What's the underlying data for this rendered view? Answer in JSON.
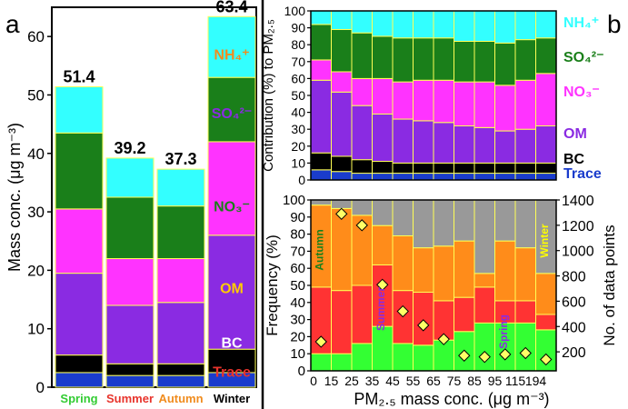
{
  "chart_data": [
    {
      "type": "bar",
      "panel_label": "a",
      "ylabel": "Mass conc. (μg m⁻³)",
      "ylim": [
        0,
        65
      ],
      "yticks": [
        "0",
        "10",
        "20",
        "30",
        "40",
        "50",
        "60"
      ],
      "categories": [
        "Spring",
        "Summer",
        "Autumn",
        "Winter"
      ],
      "category_colors": [
        "#33cc33",
        "#e8342c",
        "#f08c1e",
        "#000000"
      ],
      "totals": [
        "51.4",
        "39.2",
        "37.3",
        "63.4"
      ],
      "series": [
        {
          "name": "Trace",
          "color": "#1a3ccc",
          "values": [
            2.5,
            2.0,
            2.0,
            2.5
          ]
        },
        {
          "name": "BC",
          "color": "#000000",
          "values": [
            3.0,
            2.0,
            2.0,
            4.0
          ]
        },
        {
          "name": "OM",
          "color": "#8a2be2",
          "values": [
            14.0,
            10.0,
            10.5,
            19.5
          ]
        },
        {
          "name": "NO₃⁻",
          "color": "#ff33ff",
          "values": [
            11.0,
            8.0,
            7.5,
            16.0
          ]
        },
        {
          "name": "SO₄²⁻",
          "color": "#1a7f1a",
          "values": [
            13.0,
            10.5,
            9.0,
            11.0
          ]
        },
        {
          "name": "NH₄⁺",
          "color": "#33ffff",
          "values": [
            7.9,
            6.7,
            6.3,
            10.4
          ]
        }
      ],
      "stack_labels": [
        {
          "text": "NH₄⁺",
          "color": "#f08c1e",
          "y": 57
        },
        {
          "text": "SO₄²⁻",
          "color": "#8a2be2",
          "y": 47
        },
        {
          "text": "NO₃⁻",
          "color": "#1a7f1a",
          "y": 31
        },
        {
          "text": "OM",
          "color": "#ffcc00",
          "y": 17
        },
        {
          "text": "BC",
          "color": "#ffffff",
          "y": 7.7
        },
        {
          "text": "Trace",
          "color": "#e8342c",
          "y": 2.7
        }
      ]
    },
    {
      "type": "bar",
      "panel_label": "b",
      "ylabel": "Contribution (%) to PM₂.₅",
      "ylim": [
        0,
        100
      ],
      "yticks": [
        "0",
        "10",
        "20",
        "30",
        "40",
        "50",
        "60",
        "70",
        "80",
        "90",
        "100"
      ],
      "bins": 12,
      "series": [
        {
          "name": "Trace",
          "color": "#1a3ccc",
          "values": [
            6,
            5,
            4,
            4,
            4,
            4,
            4,
            4,
            4,
            4,
            4,
            4
          ]
        },
        {
          "name": "BC",
          "color": "#000000",
          "values": [
            10,
            9,
            8,
            7,
            6,
            6,
            6,
            6,
            6,
            6,
            6,
            6
          ]
        },
        {
          "name": "OM",
          "color": "#8a2be2",
          "values": [
            43,
            38,
            32,
            28,
            26,
            25,
            24,
            22,
            21,
            19,
            20,
            22
          ]
        },
        {
          "name": "NO₃⁻",
          "color": "#ff33ff",
          "values": [
            12,
            12,
            16,
            21,
            22,
            24,
            25,
            26,
            27,
            27,
            29,
            31
          ]
        },
        {
          "name": "SO₄²⁻",
          "color": "#1a7f1a",
          "values": [
            21,
            25,
            27,
            25,
            26,
            25,
            25,
            24,
            24,
            25,
            24,
            21
          ]
        },
        {
          "name": "NH₄⁺",
          "color": "#33ffff",
          "values": [
            8,
            11,
            13,
            15,
            16,
            16,
            16,
            18,
            18,
            19,
            17,
            16
          ]
        }
      ],
      "legend": [
        {
          "text": "NH₄⁺",
          "color": "#33ffff"
        },
        {
          "text": "SO₄²⁻",
          "color": "#1a7f1a"
        },
        {
          "text": "NO₃⁻",
          "color": "#ff33ff"
        },
        {
          "text": "OM",
          "color": "#8a2be2"
        },
        {
          "text": "BC",
          "color": "#000000"
        },
        {
          "text": "Trace",
          "color": "#1a3ccc"
        }
      ]
    },
    {
      "type": "bar",
      "ylabel": "Frequency (%)",
      "ylim": [
        0,
        100
      ],
      "yticks": [
        "0",
        "10",
        "20",
        "30",
        "40",
        "50",
        "60",
        "70",
        "80",
        "90",
        "100"
      ],
      "y2label": "No. of data points",
      "y2lim": [
        50,
        1400
      ],
      "y2ticks": [
        "200",
        "400",
        "600",
        "800",
        "1000",
        "1200",
        "1400"
      ],
      "xlabel": "PM₂.₅ mass conc. (μg m⁻³)",
      "xticks": [
        "0",
        "15",
        "25",
        "35",
        "45",
        "55",
        "65",
        "75",
        "85",
        "95",
        "115",
        "194"
      ],
      "series": [
        {
          "name": "Spring",
          "color": "#33ff33",
          "values": [
            10,
            10,
            16,
            26,
            16,
            15,
            18,
            23,
            28,
            28,
            28,
            24
          ]
        },
        {
          "name": "Summer",
          "color": "#ff3333",
          "values": [
            39,
            37,
            34,
            36,
            31,
            31,
            23,
            20,
            21,
            13,
            13,
            9
          ]
        },
        {
          "name": "Autumn",
          "color": "#ff8c1a",
          "values": [
            48,
            48,
            41,
            23,
            32,
            26,
            32,
            33,
            8,
            35,
            31,
            24
          ]
        },
        {
          "name": "Winter",
          "color": "#999999",
          "values": [
            3,
            5,
            9,
            15,
            21,
            28,
            27,
            24,
            43,
            24,
            28,
            43
          ]
        }
      ],
      "points": {
        "name": "No. of data points",
        "values": [
          280,
          1290,
          1200,
          730,
          520,
          410,
          300,
          170,
          160,
          180,
          190,
          140
        ]
      },
      "annotations": [
        {
          "text": "Autumn",
          "color": "#1a7f1a",
          "bin": 0
        },
        {
          "text": "Summer",
          "color": "#8a2be2",
          "bin": 3
        },
        {
          "text": "Spring",
          "color": "#8a2be2",
          "bin": 9
        },
        {
          "text": "Winter",
          "color": "#ffff00",
          "bin": 11
        }
      ]
    }
  ]
}
